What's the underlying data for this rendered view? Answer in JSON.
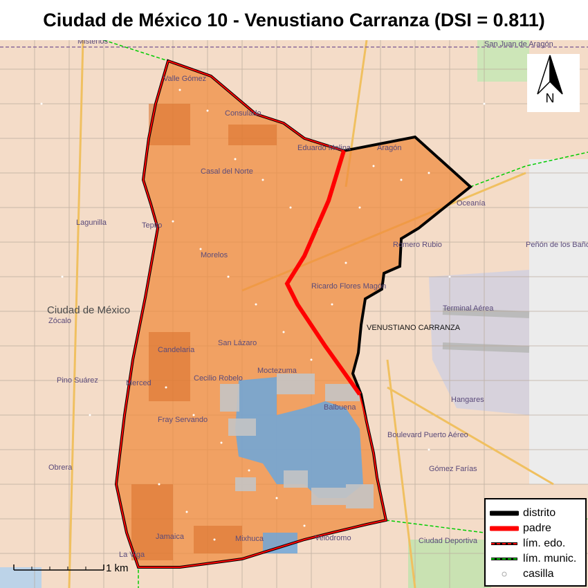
{
  "title": "Ciudad de México 10 - Venustiano Carranza (DSI = 0.811)",
  "north_label": "N",
  "scale_label": "1 km",
  "district_label": "VENUSTIANO CARRANZA",
  "map_labels": [
    {
      "text": "Misterios"
    },
    {
      "text": "Valle Gómez"
    },
    {
      "text": "Consulado"
    },
    {
      "text": "Eduardo Molina"
    },
    {
      "text": "Aragón"
    },
    {
      "text": "San Juan de Aragón"
    },
    {
      "text": "Casal del Norte"
    },
    {
      "text": "Morelos"
    },
    {
      "text": "Romero Rubio"
    },
    {
      "text": "Ricardo Flores Magón"
    },
    {
      "text": "Oceanía"
    },
    {
      "text": "Peñón de los Baños"
    },
    {
      "text": "Terminal Aérea"
    },
    {
      "text": "Ciudad de México"
    },
    {
      "text": "Zócalo"
    },
    {
      "text": "San Lázaro"
    },
    {
      "text": "Candelaria"
    },
    {
      "text": "Moctezuma"
    },
    {
      "text": "Balbuena"
    },
    {
      "text": "Fray Servando"
    },
    {
      "text": "Pino Suárez"
    },
    {
      "text": "Merced"
    },
    {
      "text": "Cecilio Robelo"
    },
    {
      "text": "Lagunilla"
    },
    {
      "text": "Tepito"
    },
    {
      "text": "Jamaica"
    },
    {
      "text": "Mixhuca"
    },
    {
      "text": "Hangares"
    },
    {
      "text": "Boulevard Puerto Aéreo"
    },
    {
      "text": "Gómez Farías"
    },
    {
      "text": "Ciudad Deportiva"
    },
    {
      "text": "Velódromo"
    },
    {
      "text": "La Viga"
    },
    {
      "text": "Obrera"
    }
  ],
  "legend": [
    {
      "label": "distrito",
      "kind": "solid",
      "color": "#000000"
    },
    {
      "label": "padre",
      "kind": "solid",
      "color": "#ff0000"
    },
    {
      "label": "lím. edo.",
      "kind": "dashed",
      "color": "#ff0000"
    },
    {
      "label": "lím. munic.",
      "kind": "dashed",
      "color": "#00cc00"
    },
    {
      "label": "casilla",
      "kind": "circle",
      "color": "#aaaaaa"
    }
  ],
  "colors": {
    "district_fill": "#f08a3c",
    "section_blue": "#6ea6d8",
    "section_gray": "#c4c4c4",
    "district_border": "#000000",
    "parent_border": "#ff0000",
    "municipal_limit": "#00cc00",
    "airport": "#e8e8e8"
  }
}
